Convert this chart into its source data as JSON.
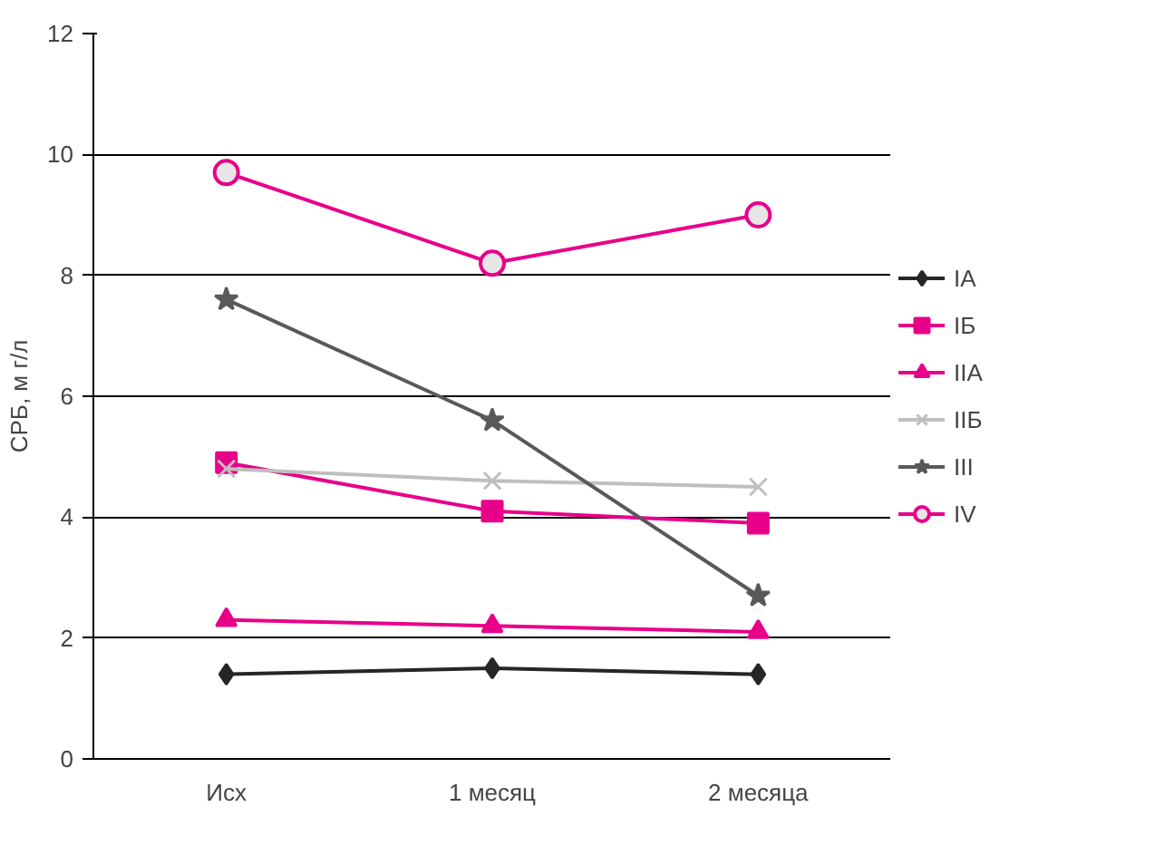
{
  "chart_data": {
    "type": "line",
    "ylabel": "СРБ, м г/л",
    "categories": [
      "Исх",
      "1 месяц",
      "2 месяца"
    ],
    "ylim": [
      0,
      12
    ],
    "yticks": [
      0,
      2,
      4,
      6,
      8,
      10,
      12
    ],
    "grid": "y",
    "legend": "right",
    "series": [
      {
        "name": "IА",
        "color": "#262626",
        "marker": "diamond",
        "values": [
          1.4,
          1.5,
          1.4
        ]
      },
      {
        "name": "IБ",
        "color": "#e8008a",
        "marker": "square",
        "values": [
          4.9,
          4.1,
          3.9
        ]
      },
      {
        "name": "IIА",
        "color": "#e8008a",
        "marker": "triangle",
        "values": [
          2.3,
          2.2,
          2.1
        ]
      },
      {
        "name": "IIБ",
        "color": "#bfbfbf",
        "marker": "cross",
        "values": [
          4.8,
          4.6,
          4.5
        ]
      },
      {
        "name": "III",
        "color": "#595959",
        "marker": "star",
        "values": [
          7.6,
          5.6,
          2.7
        ]
      },
      {
        "name": "IV",
        "color": "#e8008a",
        "marker": "circle",
        "values": [
          9.7,
          8.2,
          9.0
        ]
      }
    ]
  }
}
